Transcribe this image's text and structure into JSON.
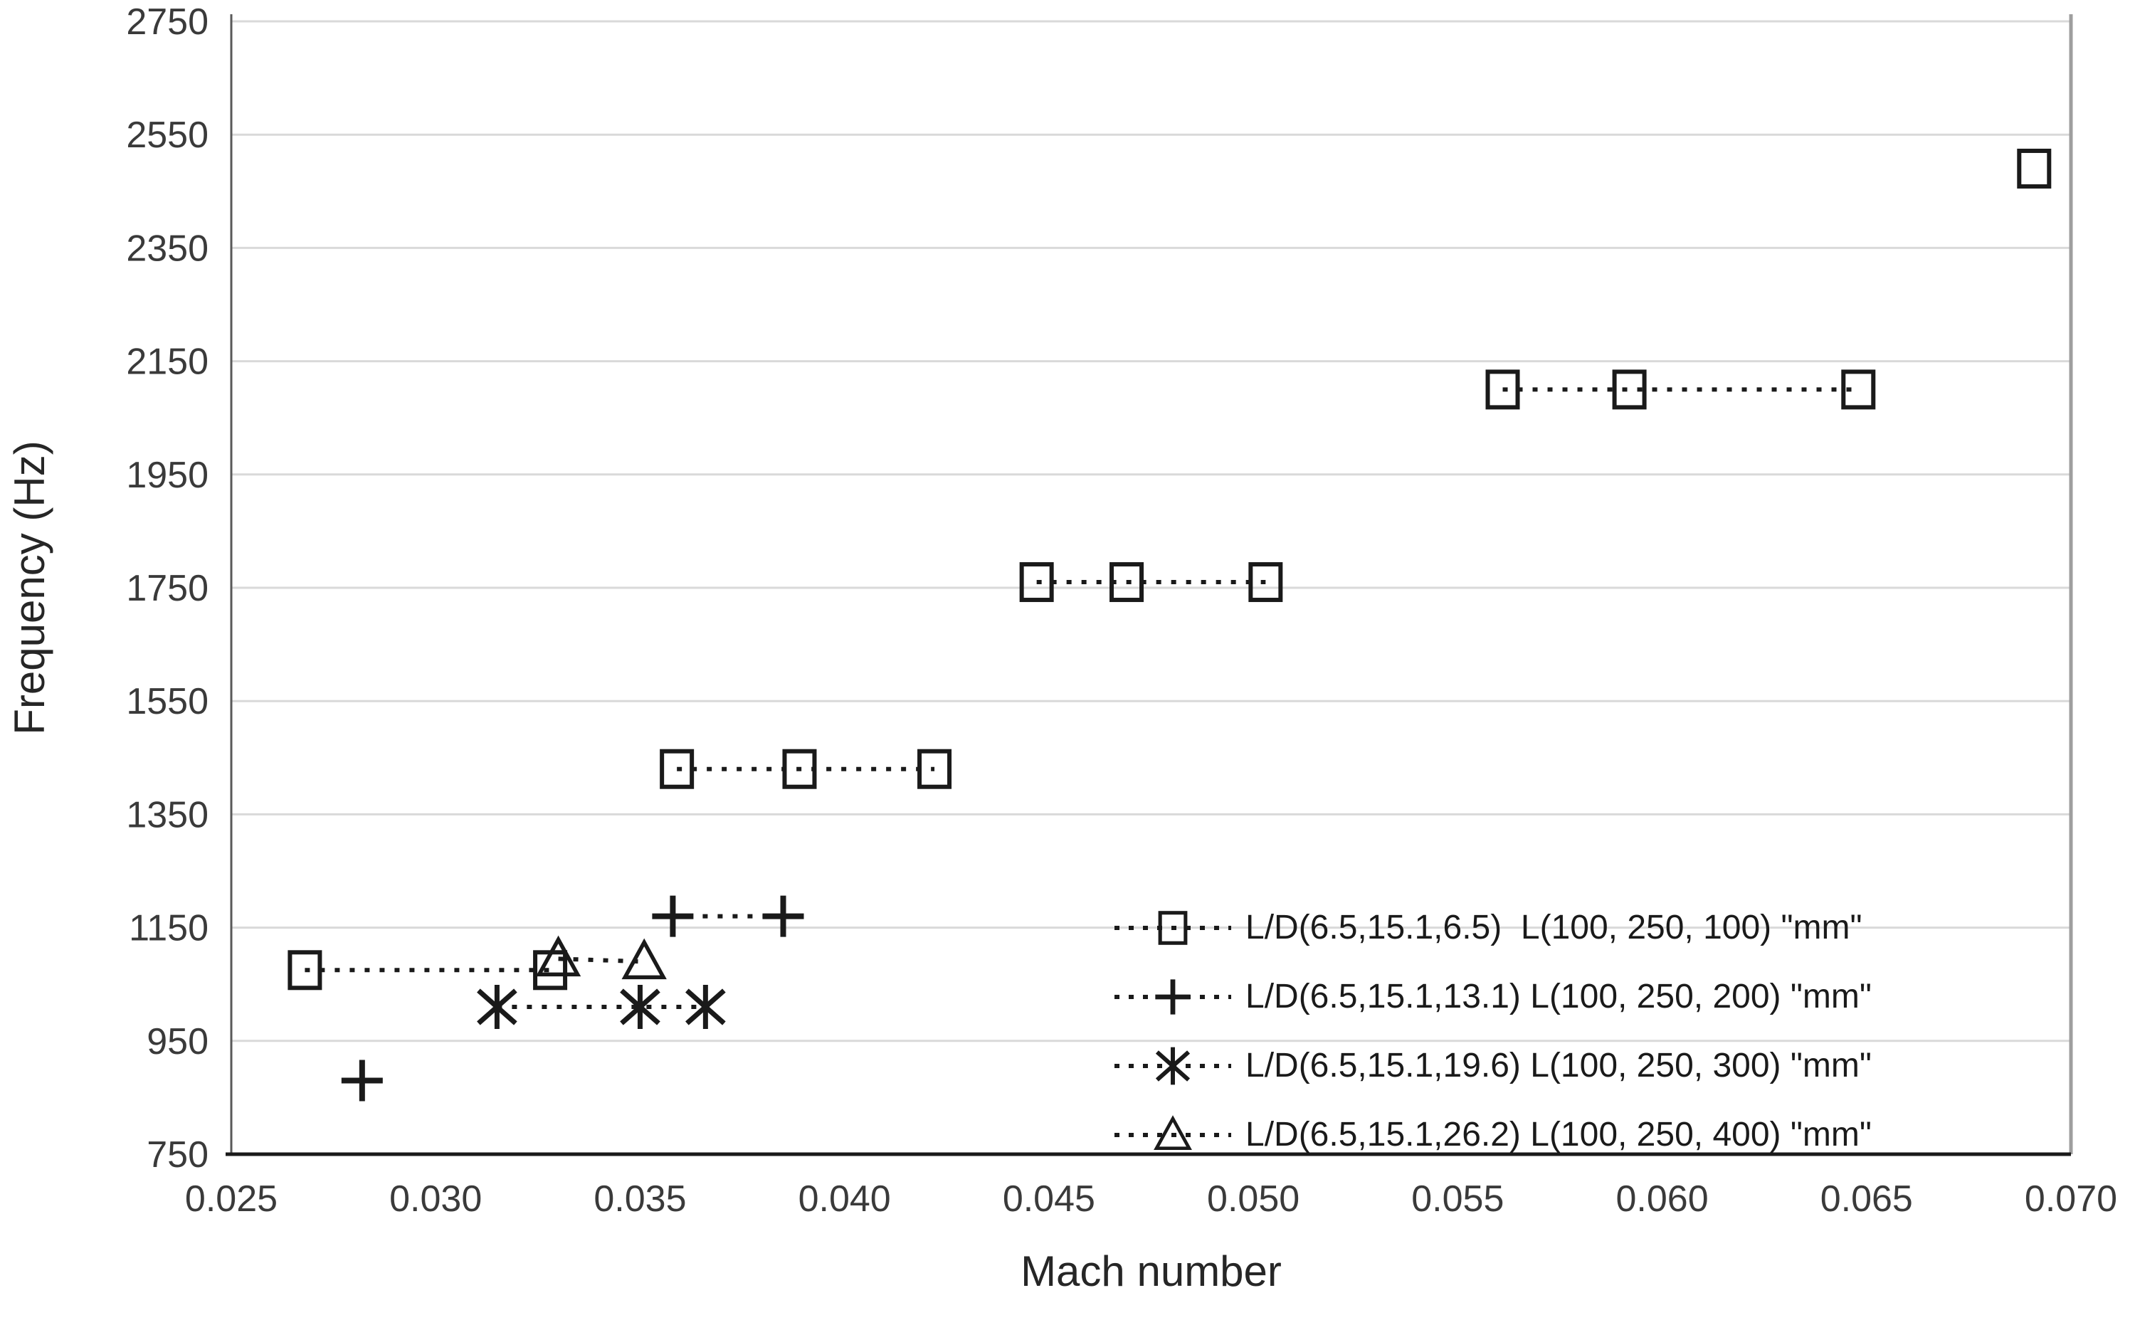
{
  "figure": {
    "x_axis_title": "Mach number",
    "y_axis_title": "Frequency (Hz)"
  },
  "chart_data": {
    "type": "scatter",
    "title": "",
    "xlabel": "Mach number",
    "ylabel": "Frequency (Hz)",
    "xlim": [
      0.025,
      0.07
    ],
    "ylim": [
      750,
      2750
    ],
    "x_ticks": [
      "0.025",
      "0.030",
      "0.035",
      "0.040",
      "0.045",
      "0.050",
      "0.055",
      "0.060",
      "0.065",
      "0.070"
    ],
    "y_ticks": [
      "750",
      "950",
      "1150",
      "1350",
      "1550",
      "1750",
      "1950",
      "2150",
      "2350",
      "2550",
      "2750"
    ],
    "grid": "horizontal",
    "gridline_color": "#d9d9d9",
    "marker_color": "#1a1a1a",
    "line_style": "dotted",
    "legend_position": "inside-bottom-right",
    "series": [
      {
        "name": "L/D(6.5,15.1,6.5)  L(100, 250, 100) \"mm\"",
        "marker": "square",
        "segments": [
          [
            [
              0.0268,
              1075
            ],
            [
              0.0328,
              1075
            ]
          ],
          [
            [
              0.0359,
              1430
            ],
            [
              0.0389,
              1430
            ],
            [
              0.0422,
              1430
            ]
          ],
          [
            [
              0.0447,
              1760
            ],
            [
              0.0469,
              1760
            ],
            [
              0.0503,
              1760
            ]
          ],
          [
            [
              0.0561,
              2100
            ],
            [
              0.0592,
              2100
            ],
            [
              0.0648,
              2100
            ]
          ],
          [
            [
              0.0691,
              2490
            ]
          ]
        ]
      },
      {
        "name": "L/D(6.5,15.1,13.1) L(100, 250, 200) \"mm\"",
        "marker": "plus",
        "segments": [
          [
            [
              0.0282,
              880
            ]
          ],
          [
            [
              0.0358,
              1170
            ],
            [
              0.0385,
              1170
            ]
          ]
        ]
      },
      {
        "name": "L/D(6.5,15.1,19.6) L(100, 250, 300) \"mm\"",
        "marker": "asterisk",
        "segments": [
          [
            [
              0.0315,
              1010
            ],
            [
              0.035,
              1010
            ],
            [
              0.0366,
              1010
            ]
          ]
        ]
      },
      {
        "name": "L/D(6.5,15.1,26.2) L(100, 250, 400) \"mm\"",
        "marker": "triangle",
        "segments": [
          [
            [
              0.033,
              1095
            ],
            [
              0.0351,
              1090
            ]
          ]
        ]
      }
    ]
  }
}
